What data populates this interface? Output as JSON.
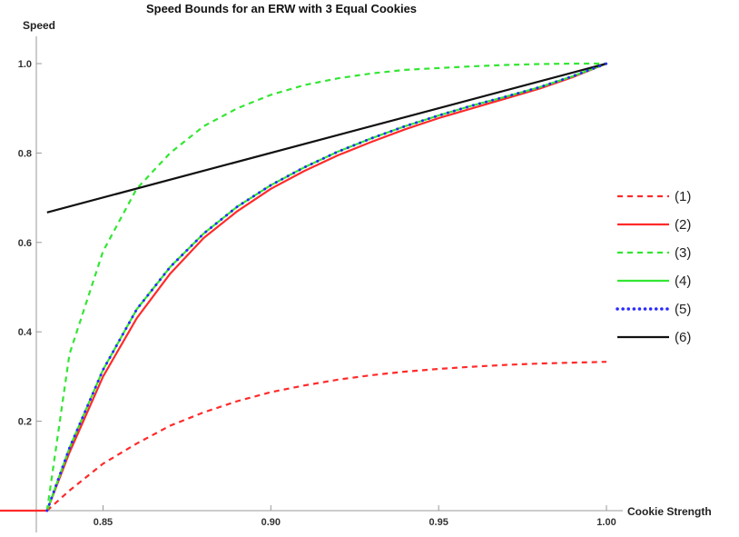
{
  "chart_data": {
    "type": "line",
    "title": "Speed Bounds for an ERW with 3 Equal Cookies",
    "xlabel": "Cookie Strength",
    "ylabel": "Speed",
    "xlim": [
      0.8193,
      1.0
    ],
    "ylim": [
      0,
      1.0
    ],
    "x_ticks": [
      "0.85",
      "0.90",
      "0.95",
      "1.00"
    ],
    "y_ticks": [
      "0.2",
      "0.4",
      "0.6",
      "0.8",
      "1.0"
    ],
    "grid": false,
    "legend_position": "right",
    "series": [
      {
        "name": "(1)",
        "color": "#ff2a2a",
        "dash": "dashed",
        "x": [
          0.8333,
          0.84,
          0.85,
          0.86,
          0.87,
          0.88,
          0.89,
          0.9,
          0.91,
          0.92,
          0.93,
          0.94,
          0.95,
          0.96,
          0.97,
          0.98,
          0.99,
          1.0
        ],
        "y": [
          0.0,
          0.045,
          0.105,
          0.15,
          0.19,
          0.22,
          0.245,
          0.265,
          0.28,
          0.293,
          0.303,
          0.311,
          0.317,
          0.322,
          0.326,
          0.329,
          0.331,
          0.333
        ]
      },
      {
        "name": "(2)",
        "color": "#ff2a2a",
        "dash": "solid",
        "x": [
          0.8193,
          0.8333,
          0.84,
          0.85,
          0.86,
          0.87,
          0.88,
          0.89,
          0.9,
          0.91,
          0.92,
          0.93,
          0.94,
          0.95,
          0.96,
          0.97,
          0.98,
          0.99,
          1.0
        ],
        "y": [
          0.0,
          0.0,
          0.13,
          0.3,
          0.43,
          0.53,
          0.61,
          0.67,
          0.72,
          0.76,
          0.795,
          0.825,
          0.853,
          0.878,
          0.9,
          0.922,
          0.944,
          0.97,
          1.0
        ]
      },
      {
        "name": "(3)",
        "color": "#33e633",
        "dash": "dashed",
        "x": [
          0.8333,
          0.84,
          0.85,
          0.86,
          0.87,
          0.88,
          0.89,
          0.9,
          0.91,
          0.92,
          0.93,
          0.94,
          0.95,
          0.96,
          0.97,
          0.98,
          0.99,
          1.0
        ],
        "y": [
          0.0,
          0.35,
          0.58,
          0.72,
          0.8,
          0.86,
          0.9,
          0.93,
          0.952,
          0.967,
          0.978,
          0.986,
          0.99,
          0.994,
          0.997,
          0.999,
          1.0,
          1.0
        ]
      },
      {
        "name": "(4)",
        "color": "#33e633",
        "dash": "solid",
        "x": [
          0.8333,
          0.84,
          0.85,
          0.86,
          0.87,
          0.88,
          0.89,
          0.9,
          0.91,
          0.92,
          0.93,
          0.94,
          0.95,
          0.96,
          0.97,
          0.98,
          0.99,
          1.0
        ],
        "y": [
          0.0,
          0.14,
          0.315,
          0.45,
          0.545,
          0.62,
          0.68,
          0.728,
          0.768,
          0.803,
          0.833,
          0.86,
          0.884,
          0.906,
          0.926,
          0.947,
          0.972,
          1.0
        ]
      },
      {
        "name": "(5)",
        "color": "#2a2aff",
        "dash": "dotted",
        "x": [
          0.8333,
          0.84,
          0.85,
          0.86,
          0.87,
          0.88,
          0.89,
          0.9,
          0.91,
          0.92,
          0.93,
          0.94,
          0.95,
          0.96,
          0.97,
          0.98,
          0.99,
          1.0
        ],
        "y": [
          0.0,
          0.14,
          0.315,
          0.45,
          0.545,
          0.62,
          0.68,
          0.728,
          0.768,
          0.803,
          0.833,
          0.86,
          0.884,
          0.906,
          0.926,
          0.947,
          0.972,
          1.0
        ]
      },
      {
        "name": "(6)",
        "color": "#111111",
        "dash": "solid",
        "x": [
          0.8333,
          1.0
        ],
        "y": [
          0.667,
          1.0
        ]
      }
    ]
  }
}
